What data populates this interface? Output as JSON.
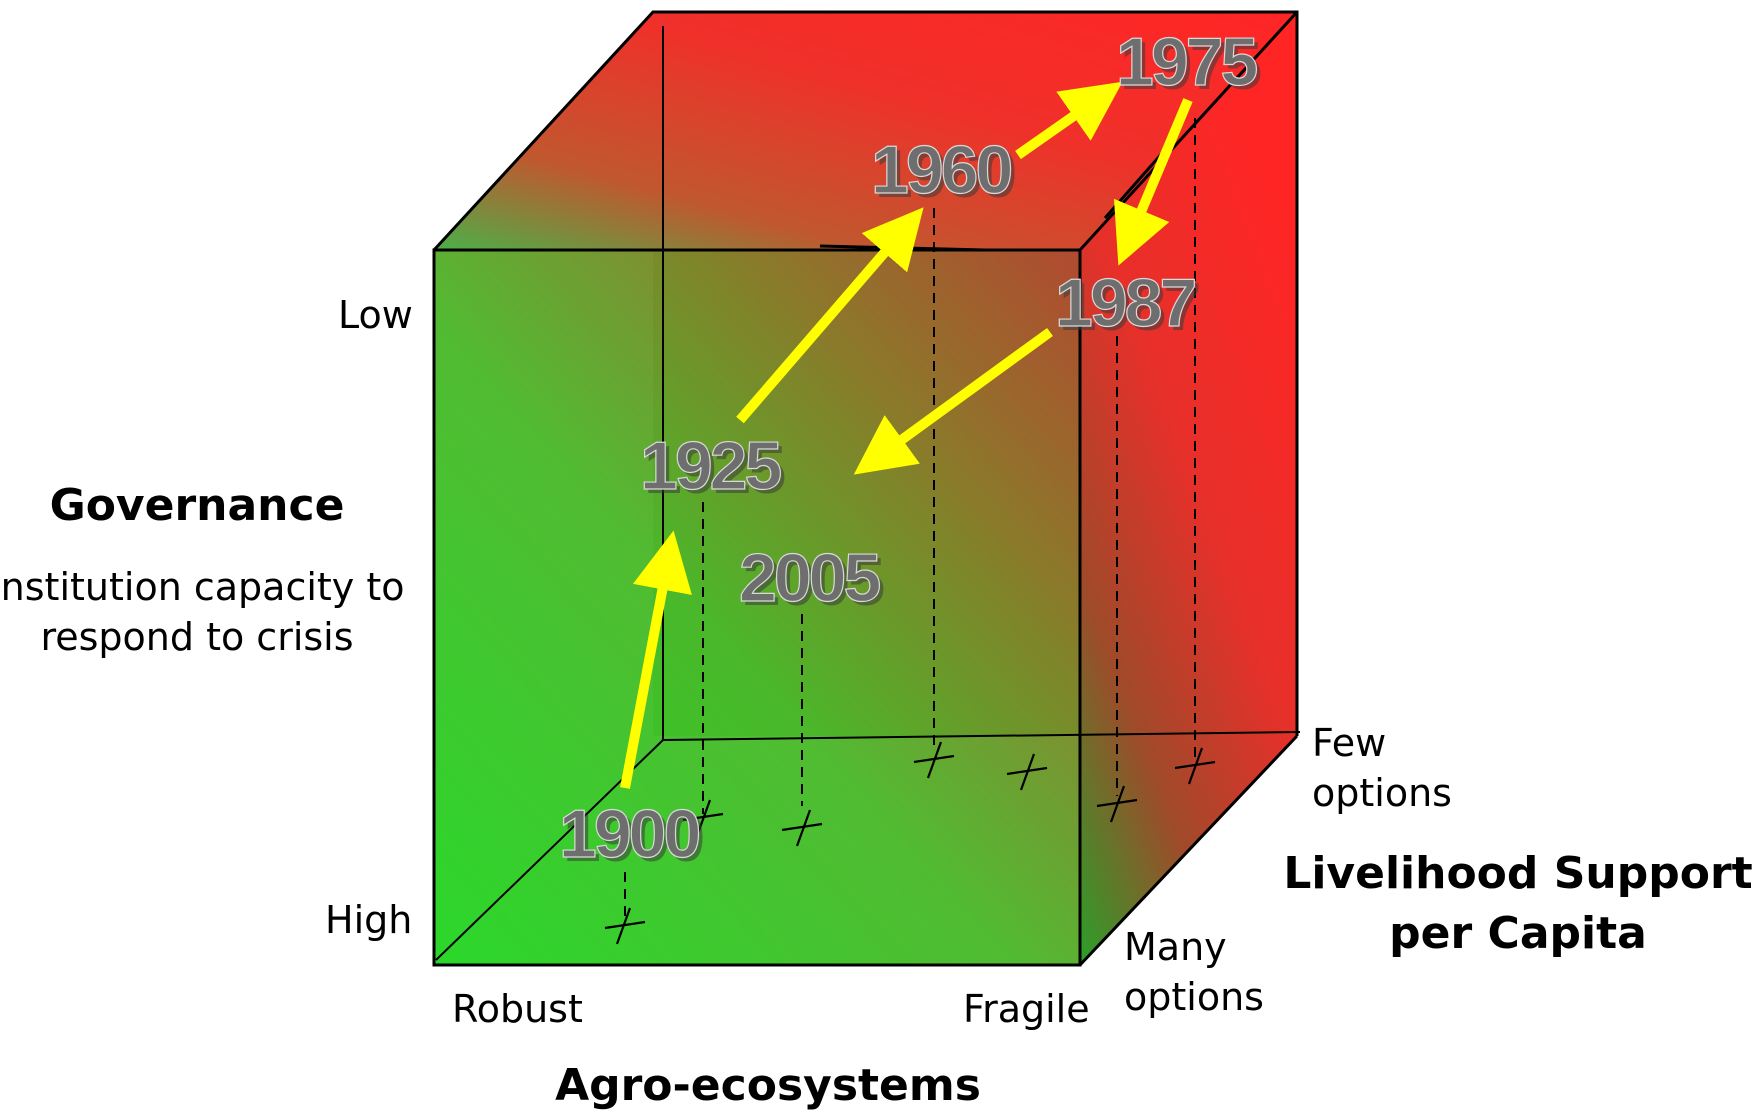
{
  "diagram": {
    "colors": {
      "good": "#2ed82e",
      "bad": "#ff2a2a",
      "arrow": "#ffff00",
      "year_text": "#6e6e6e"
    },
    "governance": {
      "title": "Governance",
      "subtitle_line1": "Institution capacity to",
      "subtitle_line2": "respond to crisis",
      "low": "Low",
      "high": "High"
    },
    "agro": {
      "title": "Agro-ecosystems",
      "robust": "Robust",
      "fragile": "Fragile"
    },
    "livelihood": {
      "title_line1": "Livelihood Support",
      "title_line2": "per Capita",
      "few_line1": "Few",
      "few_line2": "options",
      "many_line1": "Many",
      "many_line2": "options"
    },
    "years": {
      "y1900": "1900",
      "y1925": "1925",
      "y1960": "1960",
      "y1975": "1975",
      "y1987": "1987",
      "y2005": "2005"
    },
    "trajectory": [
      "1900",
      "1925",
      "1960",
      "1975",
      "1987",
      "2005"
    ]
  }
}
